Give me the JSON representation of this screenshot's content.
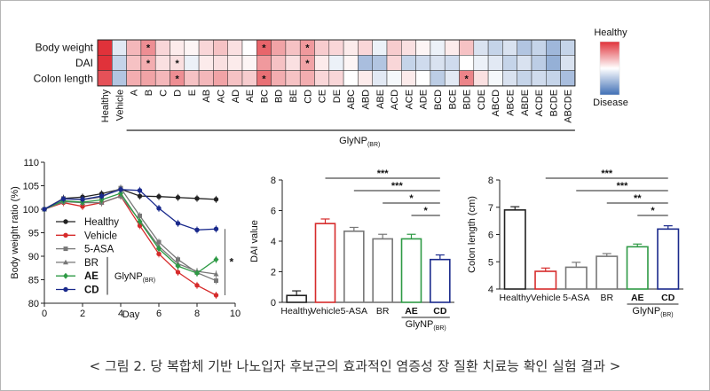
{
  "caption": "< 그림 2. 당 복합체 기반 나노입자 후보군의 효과적인 염증성 장 질환 치료능 확인 실험 결과 >",
  "chart_data": [
    {
      "type": "heatmap",
      "rows": [
        "Body weight",
        "DAI",
        "Colon length"
      ],
      "columns": [
        "Healthy",
        "Vehicle",
        "A",
        "B",
        "C",
        "D",
        "E",
        "AB",
        "AC",
        "AD",
        "AE",
        "BC",
        "BD",
        "BE",
        "CD",
        "CE",
        "DE",
        "ABC",
        "ABD",
        "ABE",
        "ACD",
        "ACE",
        "ADE",
        "BCD",
        "BCE",
        "BDE",
        "CDE",
        "ABCD",
        "ABCE",
        "ABDE",
        "ACDE",
        "BCDE",
        "ABCDE"
      ],
      "group_label": "GlyNP",
      "group_label_sub": "(BR)",
      "legend_top": "Healthy",
      "legend_bottom": "Disease",
      "scale_range": [
        -1,
        1
      ],
      "values": [
        [
          1.0,
          -0.15,
          0.35,
          0.55,
          0.2,
          0.1,
          0.05,
          0.2,
          0.3,
          0.15,
          0.0,
          0.75,
          0.45,
          0.3,
          0.5,
          0.25,
          0.2,
          0.1,
          0.2,
          -0.1,
          0.25,
          0.15,
          0.05,
          -0.1,
          0.1,
          0.3,
          -0.2,
          -0.3,
          -0.2,
          -0.4,
          -0.3,
          -0.5,
          -0.3
        ],
        [
          1.0,
          -0.3,
          0.3,
          0.4,
          0.15,
          0.15,
          -0.1,
          0.1,
          0.15,
          0.1,
          0.05,
          0.5,
          0.3,
          0.15,
          0.45,
          0.1,
          -0.1,
          0.05,
          -0.45,
          -0.4,
          0.2,
          -0.3,
          -0.25,
          -0.2,
          -0.25,
          0.0,
          -0.1,
          -0.15,
          -0.3,
          -0.2,
          -0.35,
          -0.55,
          -0.2
        ],
        [
          0.85,
          -0.4,
          0.4,
          0.45,
          0.35,
          0.55,
          0.3,
          0.35,
          0.45,
          0.3,
          0.25,
          0.7,
          0.4,
          0.3,
          0.4,
          0.2,
          0.2,
          0.0,
          0.1,
          -0.15,
          -0.05,
          0.1,
          0.0,
          -0.35,
          -0.15,
          0.6,
          0.15,
          -0.05,
          -0.2,
          -0.3,
          -0.25,
          -0.3,
          -0.45
        ]
      ],
      "stars": [
        [
          "Body weight",
          "B"
        ],
        [
          "Body weight",
          "BC"
        ],
        [
          "Body weight",
          "CD"
        ],
        [
          "DAI",
          "B"
        ],
        [
          "DAI",
          "D"
        ],
        [
          "DAI",
          "CD"
        ],
        [
          "Colon length",
          "D"
        ],
        [
          "Colon length",
          "BC"
        ],
        [
          "Colon length",
          "BDE"
        ]
      ]
    },
    {
      "type": "line",
      "xlabel": "Day",
      "ylabel": "Body weight ratio (%)",
      "xlim": [
        0,
        10
      ],
      "ylim": [
        80,
        110
      ],
      "xticks": [
        0,
        2,
        4,
        6,
        8,
        10
      ],
      "yticks": [
        80,
        85,
        90,
        95,
        100,
        105,
        110
      ],
      "x": [
        0,
        1,
        2,
        3,
        4,
        5,
        6,
        7,
        8,
        9
      ],
      "series": [
        {
          "name": "Healthy",
          "color": "#222222",
          "marker": "circle",
          "values": [
            100,
            102.3,
            102.6,
            103.3,
            104.3,
            102.8,
            102.7,
            102.5,
            102.3,
            102.1
          ]
        },
        {
          "name": "Vehicle",
          "color": "#d62b2b",
          "marker": "circle",
          "values": [
            100,
            101.4,
            100.6,
            101.4,
            102.8,
            96.5,
            90.5,
            86.6,
            83.8,
            81.7
          ]
        },
        {
          "name": "5-ASA",
          "color": "#777777",
          "marker": "square",
          "values": [
            100,
            102.3,
            102.0,
            102.6,
            104.5,
            98.6,
            93.0,
            89.3,
            86.5,
            84.8
          ]
        },
        {
          "name": "BR",
          "color": "#777777",
          "marker": "triangle",
          "values": [
            100,
            101.6,
            101.4,
            101.4,
            102.8,
            97.6,
            92.1,
            88.4,
            86.8,
            86.2
          ]
        },
        {
          "name": "AE",
          "color": "#2e9a45",
          "marker": "diamond",
          "values": [
            100,
            101.8,
            101.5,
            102.0,
            103.4,
            97.4,
            91.6,
            87.9,
            86.4,
            89.3
          ]
        },
        {
          "name": "CD",
          "color": "#1a2a8c",
          "marker": "circle",
          "values": [
            100,
            102.2,
            102.1,
            102.8,
            104.2,
            104.0,
            100.2,
            97.0,
            95.6,
            95.8
          ]
        }
      ],
      "group_label": "GlyNP",
      "group_label_sub": "(BR)",
      "significance": "*"
    },
    {
      "type": "bar",
      "ylabel": "DAI value",
      "ylim": [
        0,
        8
      ],
      "yticks": [
        0,
        2,
        4,
        6,
        8
      ],
      "categories": [
        "Healthy",
        "Vehicle",
        "5-ASA",
        "BR",
        "AE",
        "CD"
      ],
      "values": [
        0.45,
        5.15,
        4.65,
        4.15,
        4.15,
        2.8
      ],
      "errors": [
        0.3,
        0.3,
        0.25,
        0.3,
        0.3,
        0.3
      ],
      "colors": [
        "#222222",
        "#d62b2b",
        "#777777",
        "#777777",
        "#2e9a45",
        "#1a2a8c"
      ],
      "group_label": "GlyNP",
      "group_label_sub": "(BR)",
      "significance": [
        {
          "from": "Vehicle",
          "to": "CD",
          "label": "***"
        },
        {
          "from": "5-ASA",
          "to": "CD",
          "label": "***"
        },
        {
          "from": "BR",
          "to": "CD",
          "label": "*"
        },
        {
          "from": "AE",
          "to": "CD",
          "label": "*"
        }
      ]
    },
    {
      "type": "bar",
      "ylabel": "Colon length (cm)",
      "ylim": [
        4,
        8
      ],
      "yticks": [
        4,
        5,
        6,
        7,
        8
      ],
      "categories": [
        "Healthy",
        "Vehicle",
        "5-ASA",
        "BR",
        "AE",
        "CD"
      ],
      "values": [
        6.9,
        4.65,
        4.8,
        5.2,
        5.55,
        6.2
      ],
      "errors": [
        0.12,
        0.12,
        0.18,
        0.1,
        0.1,
        0.12
      ],
      "colors": [
        "#222222",
        "#d62b2b",
        "#777777",
        "#777777",
        "#2e9a45",
        "#1a2a8c"
      ],
      "group_label": "GlyNP",
      "group_label_sub": "(BR)",
      "significance": [
        {
          "from": "Vehicle",
          "to": "CD",
          "label": "***"
        },
        {
          "from": "5-ASA",
          "to": "CD",
          "label": "***"
        },
        {
          "from": "BR",
          "to": "CD",
          "label": "**"
        },
        {
          "from": "AE",
          "to": "CD",
          "label": "*"
        }
      ]
    }
  ]
}
